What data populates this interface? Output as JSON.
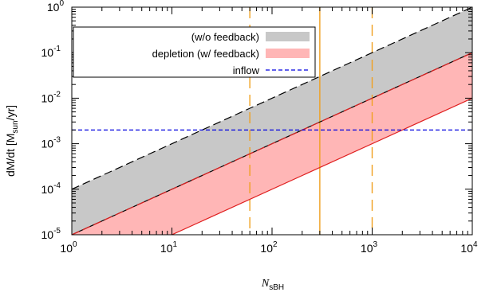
{
  "chart_data": {
    "type": "line",
    "xscale": "log",
    "yscale": "log",
    "xlim": [
      1,
      10000
    ],
    "ylim": [
      1e-05,
      1
    ],
    "xlabel": {
      "main": "N",
      "sub": "sBH"
    },
    "ylabel": {
      "prefix": "dM/dt [M",
      "sub": "sun",
      "suffix": "/yr]"
    },
    "xticks": [
      {
        "value": 1,
        "base": "10",
        "exp": "0"
      },
      {
        "value": 10,
        "base": "10",
        "exp": "1"
      },
      {
        "value": 100,
        "base": "10",
        "exp": "2"
      },
      {
        "value": 1000,
        "base": "10",
        "exp": "3"
      },
      {
        "value": 10000,
        "base": "10",
        "exp": "4"
      }
    ],
    "yticks": [
      {
        "value": 1e-05,
        "base": "10",
        "exp": "-5"
      },
      {
        "value": 0.0001,
        "base": "10",
        "exp": "-4"
      },
      {
        "value": 0.001,
        "base": "10",
        "exp": "-3"
      },
      {
        "value": 0.01,
        "base": "10",
        "exp": "-2"
      },
      {
        "value": 0.1,
        "base": "10",
        "exp": "-1"
      },
      {
        "value": 1,
        "base": "10",
        "exp": "0"
      }
    ],
    "bands": [
      {
        "name": "(w/o feedback)",
        "color": "#c8c8c8",
        "x": [
          1,
          10000
        ],
        "lower": [
          1e-05,
          0.1
        ],
        "upper": [
          0.0001,
          1
        ]
      },
      {
        "name": "depletion (w/ feedback)",
        "color": "#ffb6b6",
        "x": [
          1,
          10000
        ],
        "lower": [
          1e-06,
          0.01
        ],
        "upper": [
          1e-05,
          0.1
        ]
      }
    ],
    "lines": [
      {
        "id": "wo-upper",
        "x": [
          1,
          10000
        ],
        "y": [
          0.0001,
          1
        ],
        "color": "#000000",
        "style": "dashed"
      },
      {
        "id": "wo-lower",
        "x": [
          1,
          10000
        ],
        "y": [
          1e-05,
          0.1
        ],
        "color": "#000000",
        "style": "solid"
      },
      {
        "id": "depl-upper",
        "x": [
          1,
          10000
        ],
        "y": [
          1e-05,
          0.1
        ],
        "color": "#e02020",
        "style": "dashed"
      },
      {
        "id": "depl-lower",
        "x": [
          1,
          10000
        ],
        "y": [
          1e-06,
          0.01
        ],
        "color": "#e02020",
        "style": "solid"
      },
      {
        "id": "inflow",
        "x": [
          1,
          10000
        ],
        "y": [
          0.002,
          0.002
        ],
        "color": "#0000e0",
        "style": "dashed"
      }
    ],
    "vlines": [
      {
        "x": 60,
        "color": "#f0a020",
        "style": "dashed"
      },
      {
        "x": 300,
        "color": "#f0a020",
        "style": "solid"
      },
      {
        "x": 1000,
        "color": "#f0a020",
        "style": "dashed"
      }
    ],
    "legend": {
      "placement": "top-left",
      "entries": [
        {
          "label": "(w/o feedback)",
          "kind": "fill",
          "color": "#c8c8c8"
        },
        {
          "label": "depletion (w/ feedback)",
          "kind": "fill",
          "color": "#ffb6b6"
        },
        {
          "label": "inflow",
          "kind": "dashed",
          "color": "#0000e0"
        }
      ]
    }
  }
}
